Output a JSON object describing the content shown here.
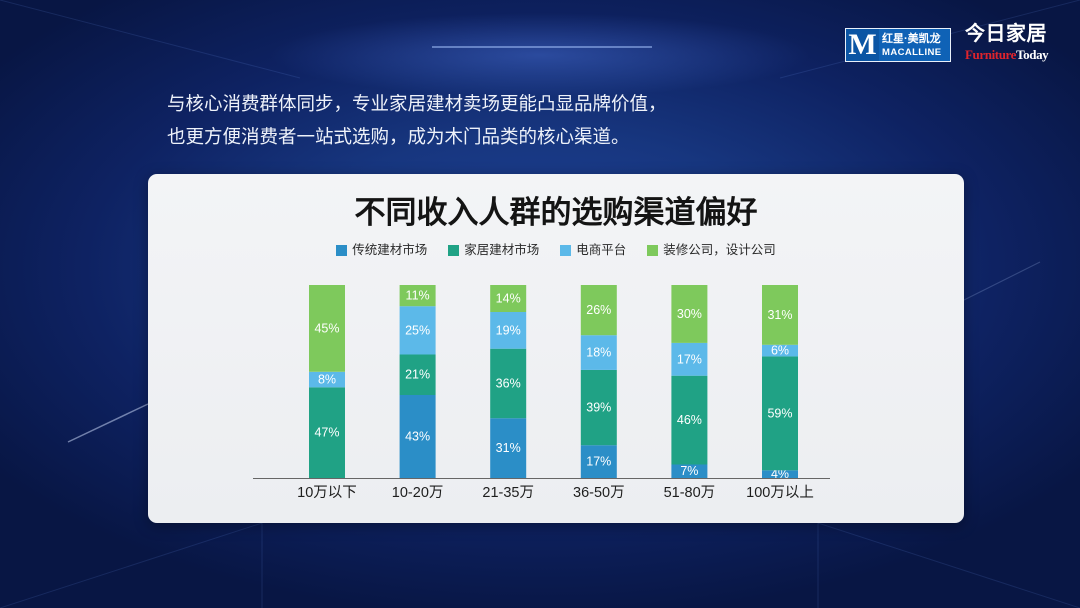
{
  "brand": {
    "logo_letter": "M",
    "logo_cn": "红星·美凯龙",
    "logo_en": "MACALLINE",
    "media_cn": "今日家居",
    "media_en_1": "Furniture",
    "media_en_2": "Today"
  },
  "colors": {
    "brand_blue": "#0f62b6",
    "furniture_red": "#e0242c"
  },
  "intro": {
    "line1": "与核心消费群体同步，专业家居建材卖场更能凸显品牌价值，",
    "line2": "也更方便消费者一站式选购，成为木门品类的核心渠道。"
  },
  "chart_data": {
    "type": "bar",
    "stacked": true,
    "title": "不同收入人群的选购渠道偏好",
    "unit": "%",
    "ylim": [
      0,
      100
    ],
    "grid": false,
    "legend_position": "top",
    "categories": [
      "10万以下",
      "10-20万",
      "21-35万",
      "36-50万",
      "51-80万",
      "100万以上"
    ],
    "series": [
      {
        "name": "传统建材市场",
        "color": "#2b8ec7",
        "values": [
          0,
          43,
          31,
          17,
          7,
          4
        ]
      },
      {
        "name": "家居建材市场",
        "color": "#20a285",
        "values": [
          47,
          21,
          36,
          39,
          46,
          59
        ]
      },
      {
        "name": "电商平台",
        "color": "#5cb9e9",
        "values": [
          8,
          25,
          19,
          18,
          17,
          6
        ]
      },
      {
        "name": "装修公司，设计公司",
        "color": "#7ec95c",
        "values": [
          45,
          11,
          14,
          26,
          30,
          31
        ]
      }
    ]
  }
}
